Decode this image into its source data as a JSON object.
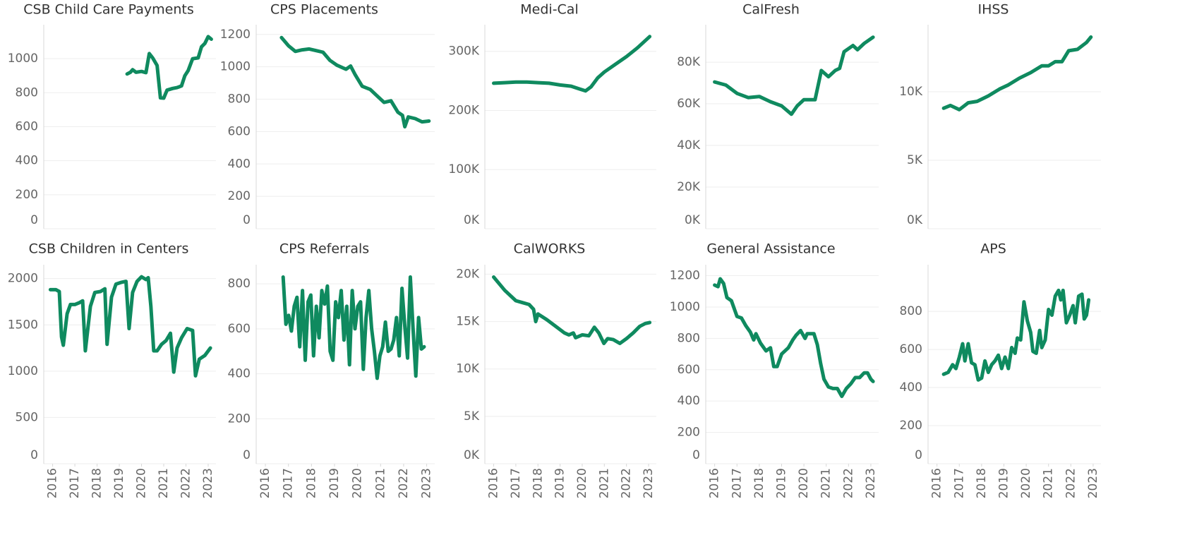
{
  "chart_data": [
    {
      "type": "line",
      "title": "CSB Child Care Payments",
      "color": "#0f8a5f",
      "grid": true,
      "xlim": [
        2015.6,
        2023.35
      ],
      "ylim": [
        0,
        1200
      ],
      "yticks": [
        0,
        200,
        400,
        600,
        800,
        1000
      ],
      "x": [
        2019.35,
        2019.5,
        2019.6,
        2019.75,
        2020.0,
        2020.2,
        2020.35,
        2020.5,
        2020.7,
        2020.85,
        2021.0,
        2021.15,
        2021.4,
        2021.6,
        2021.8,
        2021.95,
        2022.1,
        2022.3,
        2022.55,
        2022.7,
        2022.85,
        2023.0,
        2023.14
      ],
      "values": [
        910,
        920,
        935,
        920,
        925,
        918,
        1030,
        1005,
        960,
        770,
        768,
        815,
        825,
        830,
        840,
        900,
        930,
        1000,
        1005,
        1070,
        1090,
        1130,
        1115
      ]
    },
    {
      "type": "line",
      "title": "CPS Placements",
      "color": "#0f8a5f",
      "grid": true,
      "xlim": [
        2015.6,
        2023.35
      ],
      "ylim": [
        0,
        1260
      ],
      "yticks": [
        0,
        200,
        400,
        600,
        800,
        1000,
        1200
      ],
      "x": [
        2016.7,
        2017.0,
        2017.3,
        2017.6,
        2017.9,
        2018.2,
        2018.5,
        2018.8,
        2019.1,
        2019.5,
        2019.7,
        2019.9,
        2020.2,
        2020.55,
        2020.85,
        2021.15,
        2021.45,
        2021.75,
        2021.95,
        2022.05,
        2022.2,
        2022.5,
        2022.8,
        2023.1
      ],
      "values": [
        1180,
        1130,
        1095,
        1105,
        1110,
        1100,
        1090,
        1040,
        1010,
        985,
        1005,
        950,
        880,
        860,
        820,
        780,
        790,
        720,
        700,
        630,
        690,
        680,
        660,
        665
      ]
    },
    {
      "type": "line",
      "title": "Medi-Cal",
      "color": "#0f8a5f",
      "grid": true,
      "xlim": [
        2015.6,
        2023.35
      ],
      "ylim": [
        0,
        345000
      ],
      "yticks": [
        {
          "value": 0,
          "label": "0K"
        },
        {
          "value": 100000,
          "label": "100K"
        },
        {
          "value": 200000,
          "label": "200K"
        },
        {
          "value": 300000,
          "label": "300K"
        }
      ],
      "x": [
        2016.0,
        2016.5,
        2017.0,
        2017.5,
        2018.0,
        2018.5,
        2019.0,
        2019.5,
        2019.9,
        2020.15,
        2020.4,
        2020.7,
        2021.0,
        2021.5,
        2022.0,
        2022.5,
        2023.05
      ],
      "values": [
        246000,
        247000,
        248000,
        248000,
        247000,
        246000,
        243000,
        241000,
        236000,
        233000,
        240000,
        255000,
        265000,
        278000,
        291000,
        306000,
        325000
      ]
    },
    {
      "type": "line",
      "title": "CalFresh",
      "color": "#0f8a5f",
      "grid": true,
      "xlim": [
        2015.6,
        2023.35
      ],
      "ylim": [
        0,
        98000
      ],
      "yticks": [
        {
          "value": 0,
          "label": "0K"
        },
        {
          "value": 20000,
          "label": "20K"
        },
        {
          "value": 40000,
          "label": "40K"
        },
        {
          "value": 60000,
          "label": "60K"
        },
        {
          "value": 80000,
          "label": "80K"
        }
      ],
      "x": [
        2016.0,
        2016.5,
        2017.0,
        2017.5,
        2018.0,
        2018.5,
        2019.0,
        2019.44,
        2019.7,
        2020.0,
        2020.5,
        2020.78,
        2021.1,
        2021.4,
        2021.6,
        2021.8,
        2022.2,
        2022.4,
        2022.7,
        2023.1
      ],
      "values": [
        70500,
        69000,
        65000,
        63000,
        63500,
        61000,
        59000,
        55000,
        59000,
        62000,
        62000,
        76000,
        73000,
        76000,
        77000,
        85000,
        88000,
        86000,
        89000,
        92000
      ]
    },
    {
      "type": "line",
      "title": "IHSS",
      "color": "#0f8a5f",
      "grid": true,
      "xlim": [
        2015.6,
        2023.35
      ],
      "ylim": [
        0,
        14900
      ],
      "yticks": [
        {
          "value": 0,
          "label": "0K"
        },
        {
          "value": 5000,
          "label": "5K"
        },
        {
          "value": 10000,
          "label": "10K"
        }
      ],
      "x": [
        2016.3,
        2016.6,
        2017.0,
        2017.4,
        2017.8,
        2018.3,
        2018.8,
        2019.2,
        2019.7,
        2020.2,
        2020.7,
        2021.0,
        2021.3,
        2021.6,
        2021.9,
        2022.3,
        2022.7,
        2022.9
      ],
      "values": [
        8800,
        9000,
        8700,
        9200,
        9300,
        9700,
        10200,
        10500,
        11000,
        11400,
        11900,
        11900,
        12200,
        12200,
        13000,
        13100,
        13600,
        14000
      ]
    },
    {
      "type": "line",
      "title": "CSB Children in Centers",
      "color": "#0f8a5f",
      "grid": true,
      "xlim": [
        2015.6,
        2023.35
      ],
      "ylim": [
        0,
        2150
      ],
      "yticks": [
        0,
        500,
        1000,
        1500,
        2000
      ],
      "xticks": [
        2016,
        2017,
        2018,
        2019,
        2020,
        2021,
        2022,
        2023
      ],
      "x": [
        2015.9,
        2016.15,
        2016.3,
        2016.4,
        2016.48,
        2016.65,
        2016.8,
        2017.0,
        2017.2,
        2017.35,
        2017.47,
        2017.7,
        2017.9,
        2018.15,
        2018.35,
        2018.45,
        2018.65,
        2018.85,
        2019.1,
        2019.3,
        2019.44,
        2019.6,
        2019.8,
        2020.0,
        2020.2,
        2020.3,
        2020.42,
        2020.55,
        2020.7,
        2020.9,
        2021.1,
        2021.3,
        2021.45,
        2021.6,
        2021.8,
        2022.05,
        2022.3,
        2022.43,
        2022.6,
        2022.85,
        2023.1
      ],
      "values": [
        1880,
        1880,
        1860,
        1370,
        1280,
        1620,
        1720,
        1720,
        1740,
        1760,
        1220,
        1700,
        1850,
        1860,
        1890,
        1290,
        1800,
        1940,
        1960,
        1970,
        1460,
        1850,
        1970,
        2020,
        1990,
        2010,
        1700,
        1220,
        1220,
        1290,
        1330,
        1410,
        990,
        1250,
        1360,
        1460,
        1440,
        950,
        1130,
        1170,
        1250
      ]
    },
    {
      "type": "line",
      "title": "CPS Referrals",
      "color": "#0f8a5f",
      "grid": true,
      "xlim": [
        2015.6,
        2023.35
      ],
      "ylim": [
        0,
        885
      ],
      "yticks": [
        0,
        200,
        400,
        600,
        800
      ],
      "xticks": [
        2016,
        2017,
        2018,
        2019,
        2020,
        2021,
        2022,
        2023
      ],
      "x": [
        2016.77,
        2016.89,
        2017.01,
        2017.13,
        2017.25,
        2017.37,
        2017.49,
        2017.61,
        2017.73,
        2017.85,
        2017.97,
        2018.09,
        2018.21,
        2018.33,
        2018.45,
        2018.57,
        2018.69,
        2018.81,
        2018.93,
        2019.05,
        2019.17,
        2019.29,
        2019.41,
        2019.53,
        2019.65,
        2019.77,
        2019.89,
        2020.01,
        2020.13,
        2020.25,
        2020.37,
        2020.49,
        2020.61,
        2020.73,
        2020.85,
        2020.97,
        2021.09,
        2021.21,
        2021.33,
        2021.45,
        2021.57,
        2021.69,
        2021.81,
        2021.93,
        2022.05,
        2022.17,
        2022.29,
        2022.41,
        2022.53,
        2022.65,
        2022.77,
        2022.89
      ],
      "values": [
        830,
        620,
        660,
        590,
        700,
        740,
        520,
        770,
        460,
        720,
        750,
        480,
        700,
        560,
        770,
        710,
        790,
        500,
        460,
        720,
        650,
        770,
        550,
        700,
        440,
        770,
        600,
        700,
        720,
        420,
        650,
        770,
        600,
        500,
        380,
        480,
        520,
        630,
        500,
        510,
        550,
        650,
        480,
        780,
        610,
        470,
        830,
        600,
        390,
        650,
        510,
        520
      ]
    },
    {
      "type": "line",
      "title": "CalWORKS",
      "color": "#0f8a5f",
      "grid": true,
      "xlim": [
        2015.6,
        2023.35
      ],
      "ylim": [
        0,
        21000
      ],
      "yticks": [
        {
          "value": 0,
          "label": "0K"
        },
        {
          "value": 5000,
          "label": "5K"
        },
        {
          "value": 10000,
          "label": "10K"
        },
        {
          "value": 15000,
          "label": "15K"
        },
        {
          "value": 20000,
          "label": "20K"
        }
      ],
      "xticks": [
        2016,
        2017,
        2018,
        2019,
        2020,
        2021,
        2022,
        2023
      ],
      "x": [
        2016.0,
        2016.5,
        2017.0,
        2017.3,
        2017.6,
        2017.8,
        2017.9,
        2018.0,
        2018.4,
        2018.8,
        2019.2,
        2019.4,
        2019.6,
        2019.7,
        2020.0,
        2020.3,
        2020.55,
        2020.75,
        2020.98,
        2021.15,
        2021.4,
        2021.7,
        2022.0,
        2022.3,
        2022.6,
        2022.85,
        2023.05
      ],
      "values": [
        19700,
        18300,
        17200,
        17000,
        16800,
        16300,
        15000,
        15800,
        15200,
        14500,
        13800,
        13600,
        13800,
        13300,
        13600,
        13500,
        14400,
        13800,
        12700,
        13200,
        13100,
        12700,
        13200,
        13800,
        14500,
        14800,
        14900
      ]
    },
    {
      "type": "line",
      "title": "General Assistance",
      "color": "#0f8a5f",
      "grid": true,
      "xlim": [
        2015.6,
        2023.35
      ],
      "ylim": [
        0,
        1270
      ],
      "yticks": [
        0,
        200,
        400,
        600,
        800,
        1000,
        1200
      ],
      "xticks": [
        2016,
        2017,
        2018,
        2019,
        2020,
        2021,
        2022,
        2023
      ],
      "x": [
        2016.0,
        2016.15,
        2016.25,
        2016.4,
        2016.55,
        2016.75,
        2017.0,
        2017.2,
        2017.4,
        2017.6,
        2017.75,
        2017.85,
        2018.05,
        2018.3,
        2018.5,
        2018.65,
        2018.8,
        2019.0,
        2019.3,
        2019.5,
        2019.65,
        2019.85,
        2020.05,
        2020.15,
        2020.45,
        2020.6,
        2020.75,
        2020.9,
        2021.1,
        2021.3,
        2021.5,
        2021.7,
        2021.9,
        2022.1,
        2022.3,
        2022.5,
        2022.7,
        2022.85,
        2023.0,
        2023.1
      ],
      "values": [
        1140,
        1130,
        1180,
        1150,
        1060,
        1040,
        940,
        930,
        880,
        840,
        790,
        830,
        770,
        720,
        740,
        620,
        620,
        700,
        740,
        790,
        820,
        850,
        800,
        830,
        830,
        760,
        640,
        540,
        490,
        480,
        480,
        430,
        480,
        510,
        550,
        550,
        580,
        580,
        540,
        525
      ]
    },
    {
      "type": "line",
      "title": "APS",
      "color": "#0f8a5f",
      "grid": true,
      "xlim": [
        2015.6,
        2023.35
      ],
      "ylim": [
        0,
        1045
      ],
      "yticks": [
        0,
        200,
        400,
        600,
        800
      ],
      "xticks": [
        2016,
        2017,
        2018,
        2019,
        2020,
        2021,
        2022,
        2023
      ],
      "x": [
        2016.3,
        2016.5,
        2016.7,
        2016.85,
        2017.0,
        2017.15,
        2017.25,
        2017.4,
        2017.55,
        2017.7,
        2017.85,
        2018.0,
        2018.15,
        2018.3,
        2018.45,
        2018.6,
        2018.75,
        2018.9,
        2019.05,
        2019.2,
        2019.35,
        2019.5,
        2019.6,
        2019.75,
        2019.9,
        2020.05,
        2020.2,
        2020.3,
        2020.45,
        2020.6,
        2020.7,
        2020.85,
        2021.0,
        2021.15,
        2021.3,
        2021.45,
        2021.55,
        2021.65,
        2021.8,
        2021.95,
        2022.1,
        2022.2,
        2022.35,
        2022.5,
        2022.6,
        2022.7,
        2022.8
      ],
      "values": [
        470,
        480,
        520,
        500,
        560,
        630,
        540,
        630,
        530,
        520,
        440,
        450,
        540,
        480,
        520,
        540,
        570,
        500,
        560,
        500,
        610,
        580,
        660,
        650,
        850,
        750,
        690,
        590,
        580,
        700,
        610,
        650,
        810,
        780,
        880,
        910,
        860,
        910,
        740,
        780,
        830,
        740,
        880,
        890,
        760,
        780,
        860
      ]
    }
  ]
}
